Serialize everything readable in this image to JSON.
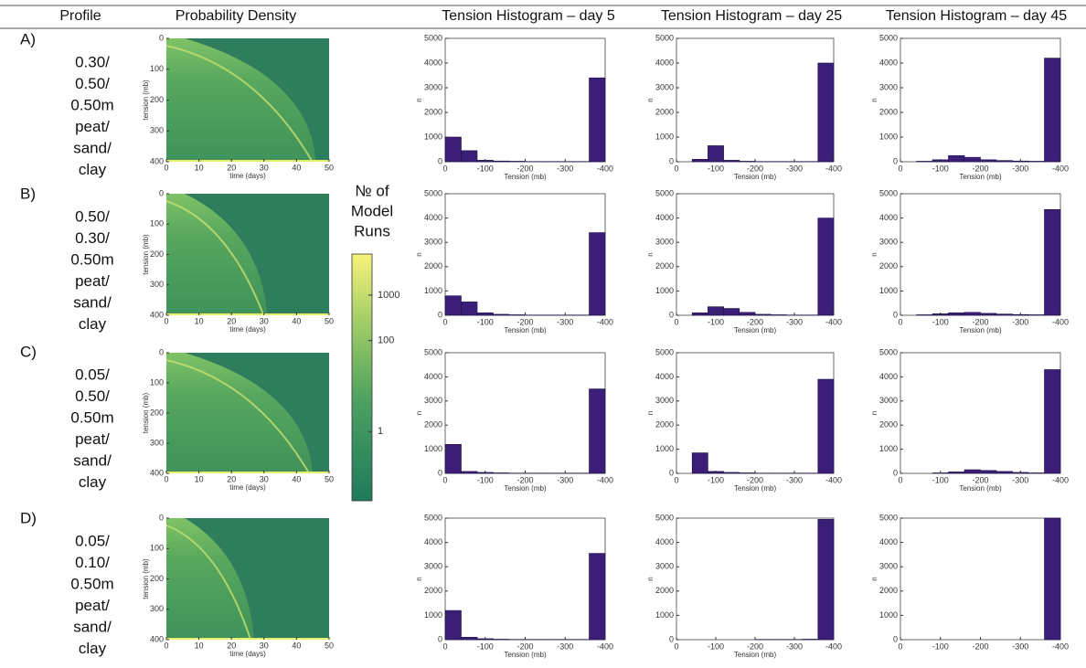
{
  "header": [
    "Profile",
    "Probability Density",
    "Tension Histogram – day 5",
    "Tension Histogram – day 25",
    "Tension Histogram – day 45"
  ],
  "rows": [
    {
      "label": "A)",
      "profile": [
        "0.30/",
        "0.50/",
        "0.50m",
        "peat/",
        "sand/",
        "clay"
      ]
    },
    {
      "label": "B)",
      "profile": [
        "0.50/",
        "0.30/",
        "0.50m",
        "peat/",
        "sand/",
        "clay"
      ]
    },
    {
      "label": "C)",
      "profile": [
        "0.05/",
        "0.50/",
        "0.50m",
        "peat/",
        "sand/",
        "clay"
      ]
    },
    {
      "label": "D)",
      "profile": [
        "0.05/",
        "0.10/",
        "0.50m",
        "peat/",
        "sand/",
        "clay"
      ]
    }
  ],
  "colorbar": {
    "title": [
      "№ of",
      "Model",
      "Runs"
    ],
    "scale": "log",
    "lim": [
      0.03,
      8000
    ],
    "ticks": [
      1,
      100,
      1000
    ]
  },
  "chart_data": [
    {
      "type": "heatmap",
      "xlabel": "time (days)",
      "ylabel": "tension (mb)",
      "xlim": [
        0,
        50
      ],
      "xticks": [
        0,
        10,
        20,
        30,
        40,
        50
      ],
      "ylim": [
        400,
        0
      ],
      "yticks": [
        0,
        100,
        200,
        300,
        400
      ]
    },
    {
      "type": "histogram",
      "xlabel": "Tension (mb)",
      "ylabel": "n",
      "color": "#3a1e78",
      "bins": [
        0,
        -40,
        -80,
        -120,
        -160,
        -200,
        -240,
        -280,
        -320,
        -360,
        -400
      ],
      "values": [
        1000,
        450,
        60,
        30,
        20,
        10,
        10,
        10,
        10,
        3400
      ],
      "xlim": [
        0,
        -400
      ],
      "xticks": [
        0,
        -100,
        -200,
        -300,
        -400
      ],
      "ylim": [
        0,
        5000
      ],
      "yticks": [
        0,
        1000,
        2000,
        3000,
        4000,
        5000
      ]
    },
    {
      "type": "histogram",
      "xlabel": "Tension (mb)",
      "ylabel": "n",
      "color": "#3a1e78",
      "bins": [
        0,
        -40,
        -80,
        -120,
        -160,
        -200,
        -240,
        -280,
        -320,
        -360,
        -400
      ],
      "values": [
        0,
        100,
        650,
        60,
        20,
        10,
        10,
        10,
        10,
        4000
      ],
      "xlim": [
        0,
        -400
      ],
      "xticks": [
        0,
        -100,
        -200,
        -300,
        -400
      ],
      "ylim": [
        0,
        5000
      ],
      "yticks": [
        0,
        1000,
        2000,
        3000,
        4000,
        5000
      ]
    },
    {
      "type": "histogram",
      "xlabel": "Tension (mb)",
      "ylabel": "n",
      "color": "#3a1e78",
      "bins": [
        0,
        -40,
        -80,
        -120,
        -160,
        -200,
        -240,
        -280,
        -320,
        -360,
        -400
      ],
      "values": [
        0,
        20,
        80,
        250,
        180,
        80,
        50,
        30,
        20,
        4200
      ],
      "xlim": [
        0,
        -400
      ],
      "xticks": [
        0,
        -100,
        -200,
        -300,
        -400
      ],
      "ylim": [
        0,
        5000
      ],
      "yticks": [
        0,
        1000,
        2000,
        3000,
        4000,
        5000
      ]
    },
    {
      "type": "heatmap",
      "xlabel": "time (days)",
      "ylabel": "tension (mb)",
      "xlim": [
        0,
        50
      ],
      "xticks": [
        0,
        10,
        20,
        30,
        40,
        50
      ],
      "ylim": [
        400,
        0
      ],
      "yticks": [
        0,
        100,
        200,
        300,
        400
      ]
    },
    {
      "type": "histogram",
      "xlabel": "Tension (mb)",
      "ylabel": "n",
      "color": "#3a1e78",
      "bins": [
        0,
        -40,
        -80,
        -120,
        -160,
        -200,
        -240,
        -280,
        -320,
        -360,
        -400
      ],
      "values": [
        800,
        550,
        100,
        40,
        20,
        10,
        10,
        10,
        10,
        3400
      ],
      "xlim": [
        0,
        -400
      ],
      "xticks": [
        0,
        -100,
        -200,
        -300,
        -400
      ],
      "ylim": [
        0,
        5000
      ],
      "yticks": [
        0,
        1000,
        2000,
        3000,
        4000,
        5000
      ]
    },
    {
      "type": "histogram",
      "xlabel": "Tension (mb)",
      "ylabel": "n",
      "color": "#3a1e78",
      "bins": [
        0,
        -40,
        -80,
        -120,
        -160,
        -200,
        -240,
        -280,
        -320,
        -360,
        -400
      ],
      "values": [
        0,
        100,
        350,
        280,
        120,
        40,
        20,
        10,
        10,
        4000
      ],
      "xlim": [
        0,
        -400
      ],
      "xticks": [
        0,
        -100,
        -200,
        -300,
        -400
      ],
      "ylim": [
        0,
        5000
      ],
      "yticks": [
        0,
        1000,
        2000,
        3000,
        4000,
        5000
      ]
    },
    {
      "type": "histogram",
      "xlabel": "Tension (mb)",
      "ylabel": "n",
      "color": "#3a1e78",
      "bins": [
        0,
        -40,
        -80,
        -120,
        -160,
        -200,
        -240,
        -280,
        -320,
        -360,
        -400
      ],
      "values": [
        0,
        20,
        60,
        100,
        120,
        80,
        50,
        30,
        20,
        4350
      ],
      "xlim": [
        0,
        -400
      ],
      "xticks": [
        0,
        -100,
        -200,
        -300,
        -400
      ],
      "ylim": [
        0,
        5000
      ],
      "yticks": [
        0,
        1000,
        2000,
        3000,
        4000,
        5000
      ]
    },
    {
      "type": "heatmap",
      "xlabel": "time (days)",
      "ylabel": "tension (mb)",
      "xlim": [
        0,
        50
      ],
      "xticks": [
        0,
        10,
        20,
        30,
        40,
        50
      ],
      "ylim": [
        400,
        0
      ],
      "yticks": [
        0,
        100,
        200,
        300,
        400
      ]
    },
    {
      "type": "histogram",
      "xlabel": "Tension (mb)",
      "ylabel": "n",
      "color": "#3a1e78",
      "bins": [
        0,
        -40,
        -80,
        -120,
        -160,
        -200,
        -240,
        -280,
        -320,
        -360,
        -400
      ],
      "values": [
        1200,
        80,
        40,
        20,
        10,
        10,
        10,
        10,
        10,
        3500
      ],
      "xlim": [
        0,
        -400
      ],
      "xticks": [
        0,
        -100,
        -200,
        -300,
        -400
      ],
      "ylim": [
        0,
        5000
      ],
      "yticks": [
        0,
        1000,
        2000,
        3000,
        4000,
        5000
      ]
    },
    {
      "type": "histogram",
      "xlabel": "Tension (mb)",
      "ylabel": "n",
      "color": "#3a1e78",
      "bins": [
        0,
        -40,
        -80,
        -120,
        -160,
        -200,
        -240,
        -280,
        -320,
        -360,
        -400
      ],
      "values": [
        0,
        850,
        80,
        40,
        20,
        10,
        10,
        10,
        10,
        3900
      ],
      "xlim": [
        0,
        -400
      ],
      "xticks": [
        0,
        -100,
        -200,
        -300,
        -400
      ],
      "ylim": [
        0,
        5000
      ],
      "yticks": [
        0,
        1000,
        2000,
        3000,
        4000,
        5000
      ]
    },
    {
      "type": "histogram",
      "xlabel": "Tension (mb)",
      "ylabel": "n",
      "color": "#3a1e78",
      "bins": [
        0,
        -40,
        -80,
        -120,
        -160,
        -200,
        -240,
        -280,
        -320,
        -360,
        -400
      ],
      "values": [
        0,
        0,
        20,
        60,
        150,
        120,
        80,
        40,
        20,
        4300
      ],
      "xlim": [
        0,
        -400
      ],
      "xticks": [
        0,
        -100,
        -200,
        -300,
        -400
      ],
      "ylim": [
        0,
        5000
      ],
      "yticks": [
        0,
        1000,
        2000,
        3000,
        4000,
        5000
      ]
    },
    {
      "type": "heatmap",
      "xlabel": "time (days)",
      "ylabel": "tension (mb)",
      "xlim": [
        0,
        50
      ],
      "xticks": [
        0,
        10,
        20,
        30,
        40,
        50
      ],
      "ylim": [
        400,
        0
      ],
      "yticks": [
        0,
        100,
        200,
        300,
        400
      ]
    },
    {
      "type": "histogram",
      "xlabel": "Tension (mb)",
      "ylabel": "n",
      "color": "#3a1e78",
      "bins": [
        0,
        -40,
        -80,
        -120,
        -160,
        -200,
        -240,
        -280,
        -320,
        -360,
        -400
      ],
      "values": [
        1200,
        100,
        40,
        20,
        10,
        10,
        10,
        10,
        10,
        3550
      ],
      "xlim": [
        0,
        -400
      ],
      "xticks": [
        0,
        -100,
        -200,
        -300,
        -400
      ],
      "ylim": [
        0,
        5000
      ],
      "yticks": [
        0,
        1000,
        2000,
        3000,
        4000,
        5000
      ]
    },
    {
      "type": "histogram",
      "xlabel": "Tension (mb)",
      "ylabel": "n",
      "color": "#3a1e78",
      "bins": [
        0,
        -40,
        -80,
        -120,
        -160,
        -200,
        -240,
        -280,
        -320,
        -360,
        -400
      ],
      "values": [
        0,
        0,
        0,
        0,
        0,
        10,
        10,
        10,
        20,
        4950
      ],
      "xlim": [
        0,
        -400
      ],
      "xticks": [
        0,
        -100,
        -200,
        -300,
        -400
      ],
      "ylim": [
        0,
        5000
      ],
      "yticks": [
        0,
        1000,
        2000,
        3000,
        4000,
        5000
      ]
    },
    {
      "type": "histogram",
      "ylabel": "n",
      "color": "#3a1e78",
      "bins": [
        0,
        -40,
        -80,
        -120,
        -160,
        -200,
        -240,
        -280,
        -320,
        -360,
        -400
      ],
      "values": [
        0,
        0,
        0,
        0,
        0,
        0,
        0,
        0,
        0,
        5000
      ],
      "xlim": [
        0,
        -400
      ],
      "xticks": [
        0,
        -100,
        -200,
        -300,
        -400
      ],
      "ylim": [
        0,
        5000
      ],
      "yticks": [
        0,
        1000,
        2000,
        3000,
        4000,
        5000
      ]
    }
  ]
}
